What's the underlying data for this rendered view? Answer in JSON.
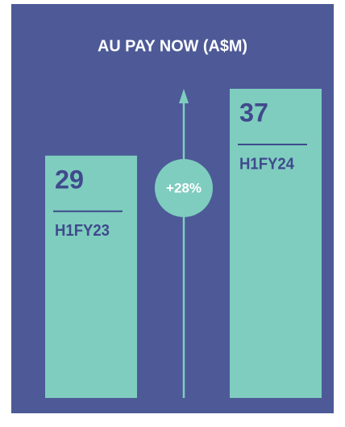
{
  "chart_data": {
    "type": "bar",
    "title": "AU PAY NOW (A$M)",
    "categories": [
      "H1FY23",
      "H1FY24"
    ],
    "values": [
      29,
      37
    ],
    "color": "#7fcdbf",
    "annotation": "+28%"
  }
}
